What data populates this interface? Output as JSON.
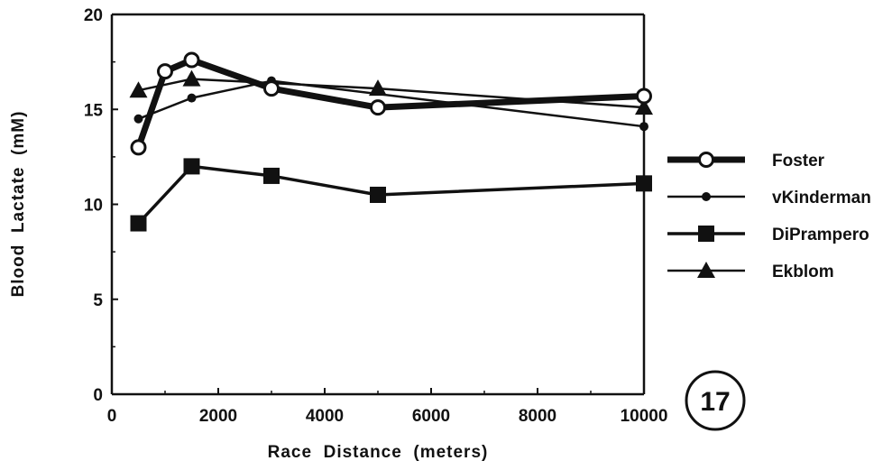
{
  "chart_data": {
    "type": "line",
    "title": "",
    "xlabel": "Race  Distance  (meters)",
    "ylabel": "Blood  Lactate  (mM)",
    "xlim": [
      0,
      10000
    ],
    "ylim": [
      0,
      20
    ],
    "xticks": [
      0,
      2000,
      4000,
      6000,
      8000,
      10000
    ],
    "yticks": [
      0,
      5,
      10,
      15,
      20
    ],
    "grid": false,
    "legend_position": "right",
    "series": [
      {
        "name": "Foster",
        "marker": "open-circle",
        "line": "thick",
        "x": [
          500,
          1000,
          1500,
          3000,
          5000,
          10000
        ],
        "y": [
          13.0,
          17.0,
          17.6,
          16.1,
          15.1,
          15.7
        ]
      },
      {
        "name": "vKinderman",
        "marker": "small-dot",
        "line": "thin",
        "x": [
          500,
          1500,
          3000,
          10000
        ],
        "y": [
          14.5,
          15.6,
          16.5,
          14.1
        ]
      },
      {
        "name": "DiPrampero",
        "marker": "square",
        "line": "medium",
        "x": [
          500,
          1500,
          3000,
          5000,
          10000
        ],
        "y": [
          9.0,
          12.0,
          11.5,
          10.5,
          11.1
        ]
      },
      {
        "name": "Ekblom",
        "marker": "triangle",
        "line": "thin",
        "x": [
          500,
          1500,
          5000,
          10000
        ],
        "y": [
          16.0,
          16.6,
          16.1,
          15.1
        ]
      }
    ],
    "annotations": [
      {
        "text": "17",
        "style": "circled"
      }
    ]
  }
}
